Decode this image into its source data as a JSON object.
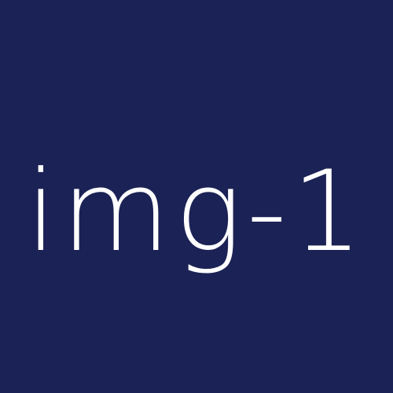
{
  "tile": {
    "label": "img-1",
    "background_color": "#1b2255",
    "text_color": "#ffffff"
  }
}
